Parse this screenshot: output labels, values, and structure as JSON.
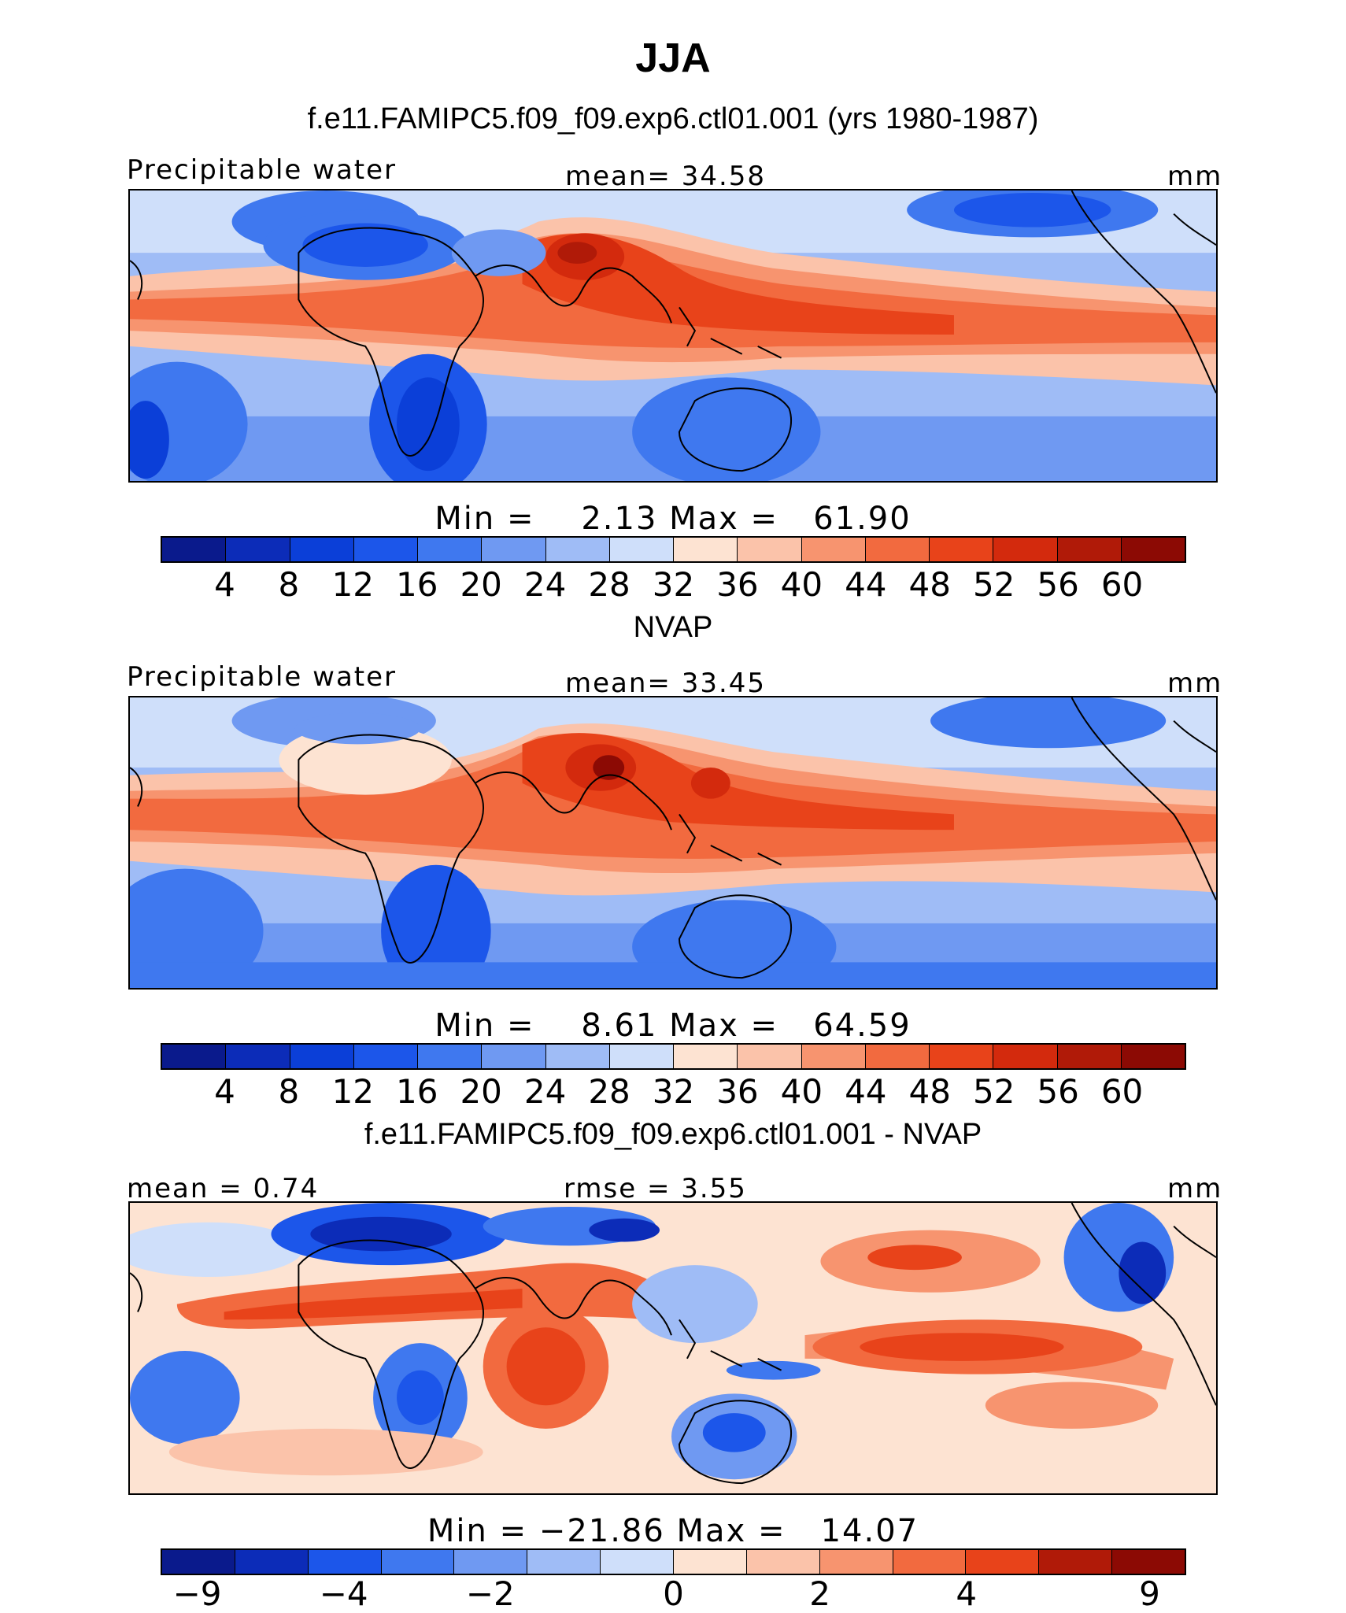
{
  "figure": {
    "title": "JJA"
  },
  "panels": [
    {
      "id": "model",
      "title": "f.e11.FAMIPC5.f09_f09.exp6.ctl01.001 (yrs 1980-1987)",
      "left_label": "Precipitable water",
      "center_label": "mean=   34.58",
      "units": "mm",
      "minmax": "Min =    2.13 Max =   61.90",
      "colorbar": {
        "ticks": [
          "4",
          "8",
          "12",
          "16",
          "20",
          "24",
          "28",
          "32",
          "36",
          "40",
          "44",
          "48",
          "52",
          "56",
          "60"
        ],
        "colors": [
          "#0a1a8c",
          "#0c2cb8",
          "#0b3fd8",
          "#1c56ea",
          "#3f78ef",
          "#6f99f2",
          "#9fbcf6",
          "#cfdffa",
          "#fde3d2",
          "#fbc3aa",
          "#f7946f",
          "#f26a3f",
          "#e8431a",
          "#d32a0d",
          "#b01a08",
          "#8c0a04"
        ]
      },
      "chart_data": {
        "type": "heatmap",
        "variable": "Precipitable water",
        "units": "mm",
        "season": "JJA",
        "mean": 34.58,
        "min": 2.13,
        "max": 61.9,
        "contour_levels": [
          4,
          8,
          12,
          16,
          20,
          24,
          28,
          32,
          36,
          40,
          44,
          48,
          52,
          56,
          60
        ],
        "features": [
          "moist tropical band across Atlantic, Indian Ocean and Pacific",
          "maximum over South Asia / Bay of Bengal",
          "dry Sahara, southern Africa, Australia and southern mid-latitudes"
        ]
      }
    },
    {
      "id": "obs",
      "title": "NVAP",
      "left_label": "Precipitable water",
      "center_label": "mean=   33.45",
      "units": "mm",
      "minmax": "Min =    8.61 Max =   64.59",
      "colorbar": {
        "ticks": [
          "4",
          "8",
          "12",
          "16",
          "20",
          "24",
          "28",
          "32",
          "36",
          "40",
          "44",
          "48",
          "52",
          "56",
          "60"
        ],
        "colors": [
          "#0a1a8c",
          "#0c2cb8",
          "#0b3fd8",
          "#1c56ea",
          "#3f78ef",
          "#6f99f2",
          "#9fbcf6",
          "#cfdffa",
          "#fde3d2",
          "#fbc3aa",
          "#f7946f",
          "#f26a3f",
          "#e8431a",
          "#d32a0d",
          "#b01a08",
          "#8c0a04"
        ]
      },
      "chart_data": {
        "type": "heatmap",
        "variable": "Precipitable water",
        "units": "mm",
        "season": "JJA",
        "mean": 33.45,
        "min": 8.61,
        "max": 64.59,
        "contour_levels": [
          4,
          8,
          12,
          16,
          20,
          24,
          28,
          32,
          36,
          40,
          44,
          48,
          52,
          56,
          60
        ],
        "features": [
          "moist tropical band",
          "maximum over Bay of Bengal",
          "dry subtropics and southern mid-latitudes"
        ]
      }
    },
    {
      "id": "diff",
      "title": "f.e11.FAMIPC5.f09_f09.exp6.ctl01.001 - NVAP",
      "left_label": "mean =    0.74",
      "center_label": "rmse =    3.55",
      "units": "mm",
      "minmax": "Min = −21.86 Max =   14.07",
      "colorbar": {
        "ticks": [
          "−9",
          "−4",
          "−2",
          "0",
          "2",
          "4",
          "9"
        ],
        "colors": [
          "#0a1a8c",
          "#0c2cb8",
          "#1c56ea",
          "#3f78ef",
          "#6f99f2",
          "#9fbcf6",
          "#cfdffa",
          "#fde3d2",
          "#fbc3aa",
          "#f7946f",
          "#f26a3f",
          "#e8431a",
          "#b01a08",
          "#8c0a04"
        ]
      },
      "chart_data": {
        "type": "heatmap",
        "variable": "Precipitable water difference (model - NVAP)",
        "units": "mm",
        "season": "JJA",
        "mean": 0.74,
        "rmse": 3.55,
        "min": -21.86,
        "max": 14.07,
        "contour_levels": [
          -9,
          -4,
          -2,
          0,
          2,
          4,
          9
        ],
        "features": [
          "strong negative bias over Sahara and Middle East north of the monsoon",
          "positive bias over Sahel, Arabian Sea and tropical Pacific",
          "negative bias over Australia and parts of South America"
        ]
      }
    }
  ]
}
